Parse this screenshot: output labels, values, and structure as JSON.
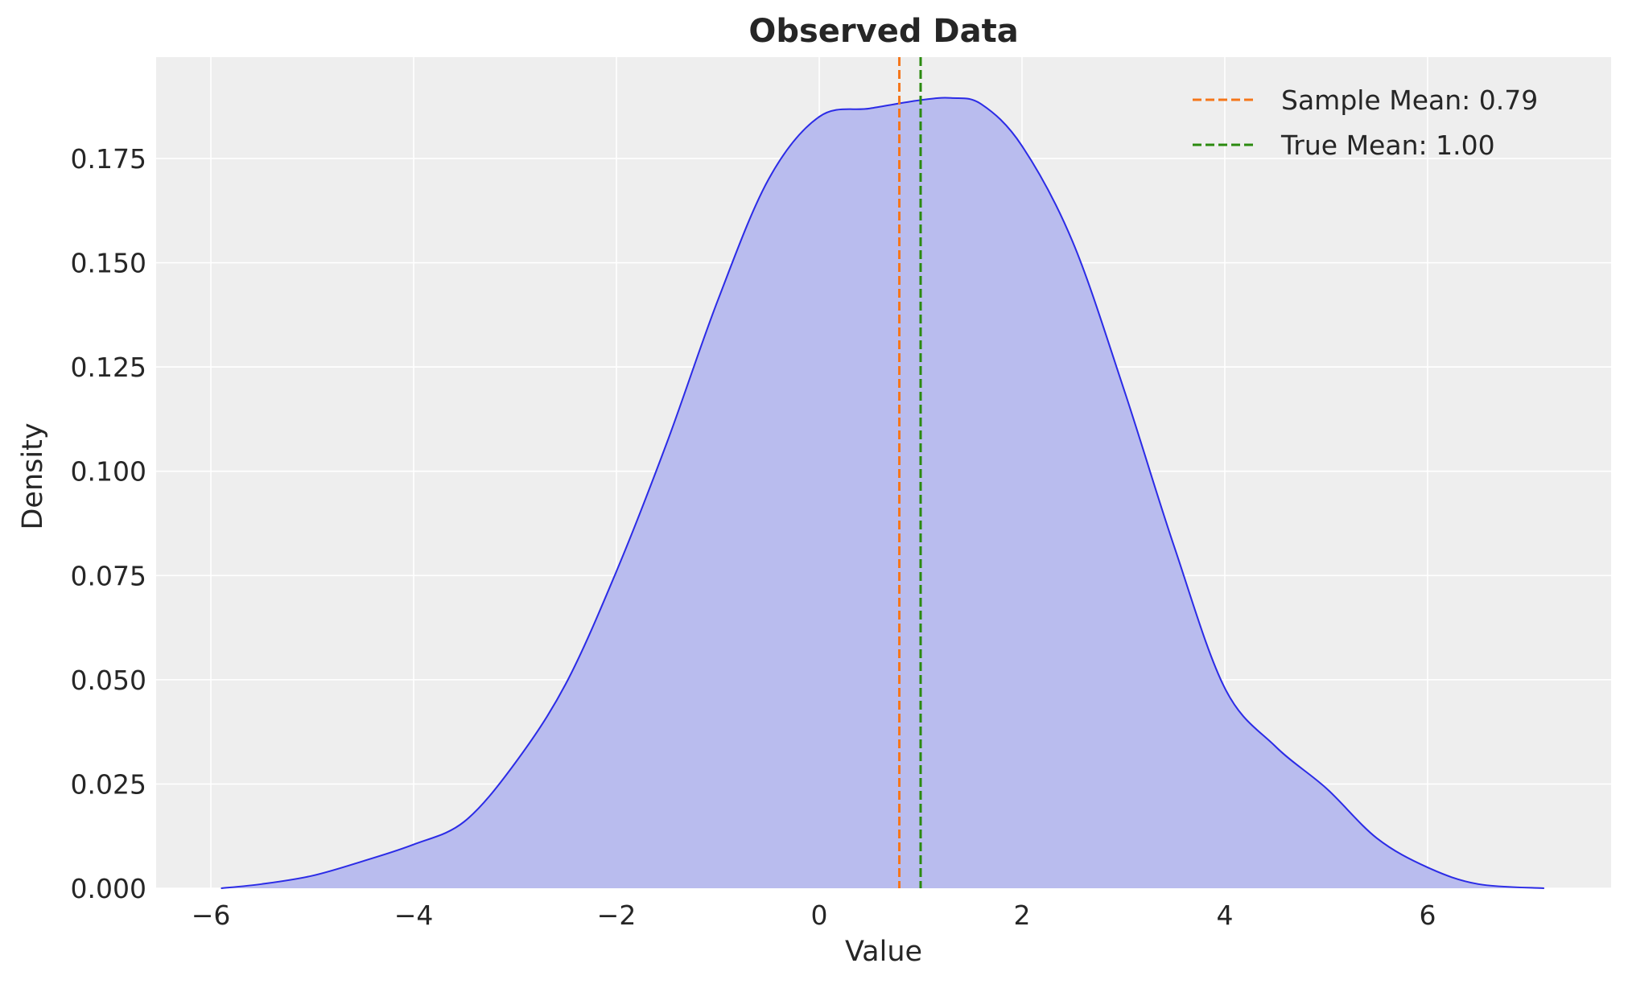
{
  "chart_data": {
    "type": "area",
    "title": "Observed Data",
    "xlabel": "Value",
    "ylabel": "Density",
    "xlim": [
      -6.54,
      7.81
    ],
    "ylim": [
      0,
      0.1993
    ],
    "xticks": [
      -6,
      -4,
      -2,
      0,
      2,
      4,
      6
    ],
    "xtick_labels": [
      "−6",
      "−4",
      "−2",
      "0",
      "2",
      "4",
      "6"
    ],
    "yticks": [
      0,
      0.025,
      0.05,
      0.075,
      0.1,
      0.125,
      0.15,
      0.175
    ],
    "ytick_labels": [
      "0.000",
      "0.025",
      "0.050",
      "0.075",
      "0.100",
      "0.125",
      "0.150",
      "0.175"
    ],
    "grid": true,
    "legend_placement": "top-right",
    "kde": {
      "x": [
        -5.9,
        -5.5,
        -5,
        -4.5,
        -4,
        -3.5,
        -3,
        -2.5,
        -2,
        -1.5,
        -1,
        -0.5,
        0,
        0.5,
        1,
        1.3,
        1.6,
        2,
        2.5,
        3,
        3.5,
        4,
        4.5,
        5,
        5.5,
        6,
        6.5,
        7.15
      ],
      "y": [
        0,
        0.001,
        0.003,
        0.0065,
        0.0105,
        0.016,
        0.03,
        0.049,
        0.076,
        0.107,
        0.141,
        0.17,
        0.185,
        0.187,
        0.189,
        0.1895,
        0.188,
        0.178,
        0.155,
        0.12,
        0.082,
        0.048,
        0.034,
        0.024,
        0.012,
        0.005,
        0.001,
        0
      ]
    },
    "vlines": [
      {
        "name": "Sample Mean: 0.79",
        "x": 0.79,
        "color": "#f5761a"
      },
      {
        "name": "True Mean: 1.00",
        "x": 1.0,
        "color": "#2a8a0f"
      }
    ],
    "colors": {
      "line": "#2b2be6",
      "fill": "#b9bcee",
      "background": "#eeeeee",
      "grid": "#ffffff"
    }
  }
}
